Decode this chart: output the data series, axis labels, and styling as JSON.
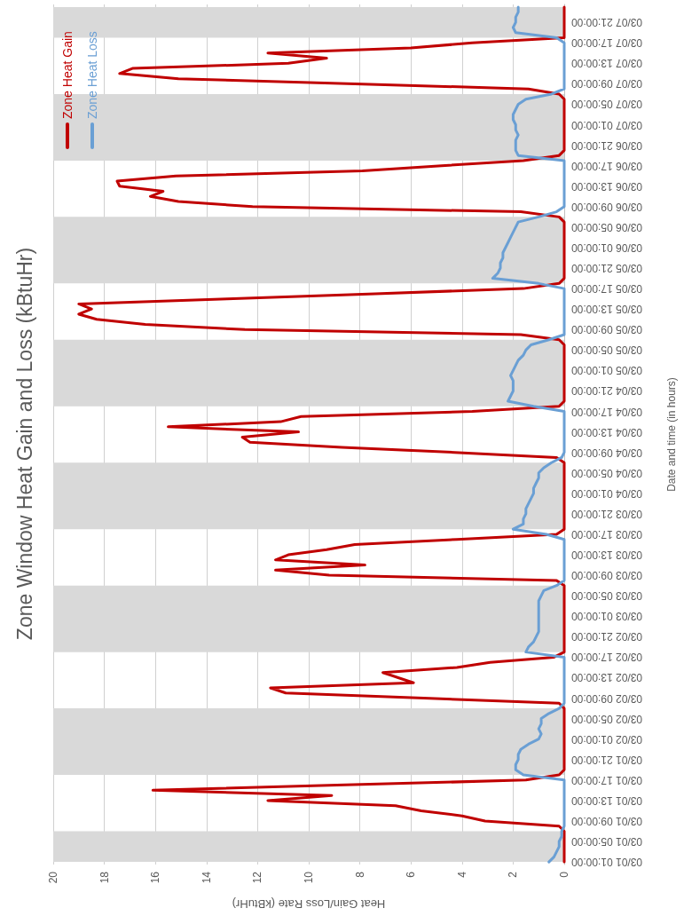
{
  "chart_data": {
    "type": "line",
    "orientation": "horizontal",
    "title": "Zone Window Heat Gain and Loss (kBtuHr)",
    "xlabel": "Heat Gain/Loss Rate (kBtuHr)",
    "ylabel": "Date and time (in hours)",
    "categories": [
      null,
      null,
      null,
      "03/07 21:00:00",
      null,
      null,
      null,
      "03/07 17:00:00",
      null,
      null,
      null,
      "03/07 13:00:00",
      null,
      null,
      null,
      "03/07 09:00:00",
      null,
      null,
      null,
      "03/07 05:00:00",
      null,
      null,
      null,
      "03/07 01:00:00",
      null,
      null,
      null,
      "03/06 21:00:00",
      null,
      null,
      null,
      "03/06 17:00:00",
      null,
      null,
      null,
      "03/06 13:00:00",
      null,
      null,
      null,
      "03/06 09:00:00",
      null,
      null,
      null,
      "03/06 05:00:00",
      null,
      null,
      null,
      "03/06 01:00:00",
      null,
      null,
      null,
      "03/05 21:00:00",
      null,
      null,
      null,
      "03/05 17:00:00",
      null,
      null,
      null,
      "03/05 13:00:00",
      null,
      null,
      null,
      "03/05 09:00:00",
      null,
      null,
      null,
      "03/05 05:00:00",
      null,
      null,
      null,
      "03/05 01:00:00",
      null,
      null,
      null,
      "03/04 21:00:00",
      null,
      null,
      null,
      "03/04 17:00:00",
      null,
      null,
      null,
      "03/04 13:00:00",
      null,
      null,
      null,
      "03/04 09:00:00",
      null,
      null,
      null,
      "03/04 05:00:00",
      null,
      null,
      null,
      "03/04 01:00:00",
      null,
      null,
      null,
      "03/03 21:00:00",
      null,
      null,
      null,
      "03/03 17:00:00",
      null,
      null,
      null,
      "03/03 13:00:00",
      null,
      null,
      null,
      "03/03 09:00:00",
      null,
      null,
      null,
      "03/03 05:00:00",
      null,
      null,
      null,
      "03/03 01:00:00",
      null,
      null,
      null,
      "03/02 21:00:00",
      null,
      null,
      null,
      "03/02 17:00:00",
      null,
      null,
      null,
      "03/02 13:00:00",
      null,
      null,
      null,
      "03/02 09:00:00",
      null,
      null,
      null,
      "03/02 05:00:00",
      null,
      null,
      null,
      "03/02 01:00:00",
      null,
      null,
      null,
      "03/01 21:00:00",
      null,
      null,
      null,
      "03/01 17:00:00",
      null,
      null,
      null,
      "03/01 13:00:00",
      null,
      null,
      null,
      "03/01 09:00:00",
      null,
      null,
      null,
      "03/01 05:00:00",
      null,
      null,
      null,
      "03/01 01:00:00"
    ],
    "series": [
      {
        "name": "Zone Heat Gain",
        "color": "#c00000",
        "values": [
          0,
          0,
          0,
          0,
          0,
          0,
          0,
          3.6,
          6.0,
          11.6,
          9.3,
          10.8,
          16.9,
          17.4,
          15.1,
          8.2,
          1.4,
          0.2,
          0,
          0,
          0,
          0,
          0,
          0,
          0,
          0,
          0,
          0,
          0,
          0.2,
          1.6,
          4.8,
          7.9,
          15.2,
          17.5,
          17.4,
          15.7,
          16.2,
          15.1,
          12.2,
          1.7,
          0.2,
          0,
          0,
          0,
          0,
          0,
          0,
          0,
          0,
          0,
          0,
          0,
          0,
          0.2,
          1.6,
          7.4,
          13.2,
          19.0,
          18.5,
          19.0,
          18.3,
          16.4,
          12.5,
          1.7,
          0.2,
          0,
          0,
          0,
          0,
          0,
          0,
          0,
          0,
          0,
          0,
          0,
          0,
          0.2,
          3.6,
          10.3,
          11.1,
          15.5,
          10.4,
          12.6,
          12.3,
          8.7,
          4.3,
          0.3,
          0,
          0,
          0,
          0,
          0,
          0,
          0,
          0,
          0,
          0,
          0,
          0,
          0,
          0,
          0.3,
          4.2,
          8.2,
          9.3,
          10.8,
          11.3,
          7.8,
          11.3,
          9.2,
          0.3,
          0,
          0,
          0,
          0,
          0,
          0,
          0,
          0,
          0,
          0,
          0,
          0,
          0,
          0,
          0.4,
          2.9,
          4.2,
          7.1,
          6.5,
          5.9,
          11.5,
          10.9,
          5.5,
          0.2,
          0,
          0,
          0,
          0,
          0,
          0,
          0,
          0,
          0,
          0,
          0,
          0,
          0,
          0.2,
          1.5,
          8.9,
          16.1,
          9.1,
          11.6,
          6.6,
          5.6,
          4.0,
          3.1,
          0.2,
          0,
          0,
          0,
          0,
          0,
          0,
          0
        ]
      },
      {
        "name": "Zone Heat Loss",
        "color": "#6a9fd4",
        "values": [
          1.8,
          1.8,
          1.9,
          1.9,
          2.0,
          1.9,
          0.3,
          0,
          0,
          0,
          0,
          0,
          0,
          0,
          0,
          0,
          0,
          0.5,
          1.5,
          1.8,
          1.9,
          2.0,
          2.0,
          1.9,
          1.9,
          1.8,
          1.9,
          1.9,
          1.9,
          1.8,
          0,
          0,
          0,
          0,
          0,
          0,
          0,
          0,
          0,
          0,
          0.3,
          1.0,
          1.8,
          1.9,
          2.0,
          2.1,
          2.2,
          2.3,
          2.4,
          2.4,
          2.5,
          2.5,
          2.6,
          2.8,
          1.0,
          0,
          0,
          0,
          0,
          0,
          0,
          0,
          0,
          0,
          0,
          0.6,
          1.3,
          1.5,
          1.6,
          1.8,
          1.9,
          2.0,
          2.1,
          2.0,
          2.0,
          2.0,
          2.1,
          2.2,
          1.2,
          0,
          0,
          0,
          0,
          0,
          0,
          0,
          0,
          0,
          0.1,
          0.5,
          0.8,
          1.0,
          1.0,
          1.1,
          1.2,
          1.2,
          1.3,
          1.4,
          1.5,
          1.5,
          1.6,
          1.6,
          2.0,
          0.7,
          0,
          0,
          0,
          0,
          0,
          0,
          0,
          0,
          0,
          0.3,
          0.8,
          0.9,
          1.0,
          1.0,
          1.0,
          1.0,
          1.0,
          1.0,
          1.0,
          1.1,
          1.2,
          1.4,
          1.5,
          0,
          0,
          0,
          0,
          0,
          0,
          0,
          0,
          0,
          0,
          0.2,
          0.6,
          0.9,
          0.9,
          1.0,
          0.9,
          1.0,
          1.4,
          1.7,
          1.8,
          1.8,
          1.9,
          1.9,
          1.6,
          0,
          0,
          0,
          0,
          0,
          0,
          0,
          0,
          0,
          0,
          0.1,
          0.1,
          0.2,
          0.2,
          0.3,
          0.4,
          0.6
        ]
      }
    ],
    "xlim": [
      20,
      0
    ],
    "xticks": [
      0,
      2,
      4,
      6,
      8,
      10,
      12,
      14,
      16,
      18,
      20
    ],
    "grid": "x",
    "legend": "top left",
    "marker": "none",
    "line_style": "solid"
  }
}
